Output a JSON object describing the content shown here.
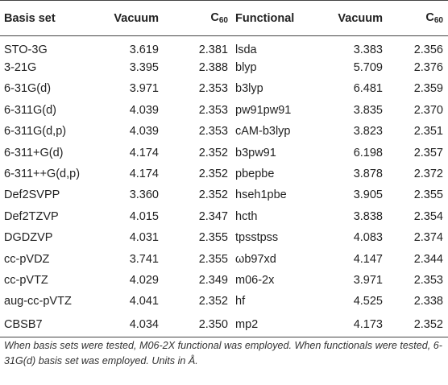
{
  "table": {
    "headers": {
      "basis_set": "Basis set",
      "vacuum_1": "Vacuum",
      "c60_1_base": "C",
      "c60_1_sub": "60",
      "functional": "Functional",
      "vacuum_2": "Vacuum",
      "c60_2_base": "C",
      "c60_2_sub": "60"
    },
    "rows": [
      {
        "basis": "STO-3G",
        "bv": "3.619",
        "bc": "2.381",
        "func": "lsda",
        "fv": "3.383",
        "fc": "2.356"
      },
      {
        "basis": "3-21G",
        "bv": "3.395",
        "bc": "2.388",
        "func": "blyp",
        "fv": "5.709",
        "fc": "2.376"
      },
      {
        "basis": "6-31G(d)",
        "bv": "3.971",
        "bc": "2.353",
        "func": "b3lyp",
        "fv": "6.481",
        "fc": "2.359"
      },
      {
        "basis": "6-311G(d)",
        "bv": "4.039",
        "bc": "2.353",
        "func": "pw91pw91",
        "fv": "3.835",
        "fc": "2.370"
      },
      {
        "basis": "6-311G(d,p)",
        "bv": "4.039",
        "bc": "2.353",
        "func": "cAM-b3lyp",
        "fv": "3.823",
        "fc": "2.351"
      },
      {
        "basis": "6-311+G(d)",
        "bv": "4.174",
        "bc": "2.352",
        "func": "b3pw91",
        "fv": "6.198",
        "fc": "2.357"
      },
      {
        "basis": "6-311++G(d,p)",
        "bv": "4.174",
        "bc": "2.352",
        "func": "pbepbe",
        "fv": "3.878",
        "fc": "2.372"
      },
      {
        "basis": "Def2SVPP",
        "bv": "3.360",
        "bc": "2.352",
        "func": "hseh1pbe",
        "fv": "3.905",
        "fc": "2.355"
      },
      {
        "basis": "Def2TZVP",
        "bv": "4.015",
        "bc": "2.347",
        "func": "hcth",
        "fv": "3.838",
        "fc": "2.354"
      },
      {
        "basis": "DGDZVP",
        "bv": "4.031",
        "bc": "2.355",
        "func": "tpsstpss",
        "fv": "4.083",
        "fc": "2.374"
      },
      {
        "basis": "cc-pVDZ",
        "bv": "3.741",
        "bc": "2.355",
        "func": "ωb97xd",
        "fv": "4.147",
        "fc": "2.344"
      },
      {
        "basis": "cc-pVTZ",
        "bv": "4.029",
        "bc": "2.349",
        "func": "m06-2x",
        "fv": "3.971",
        "fc": "2.353"
      },
      {
        "basis": "aug-cc-pVTZ",
        "bv": "4.041",
        "bc": "2.352",
        "func": "hf",
        "fv": "4.525",
        "fc": "2.338"
      },
      {
        "basis": "CBSB7",
        "bv": "4.034",
        "bc": "2.350",
        "func": "mp2",
        "fv": "4.173",
        "fc": "2.352"
      }
    ]
  },
  "footnote": "When basis sets were tested, M06-2X functional was employed. When functionals were tested, 6-31G(d) basis set was employed. Units in Å."
}
